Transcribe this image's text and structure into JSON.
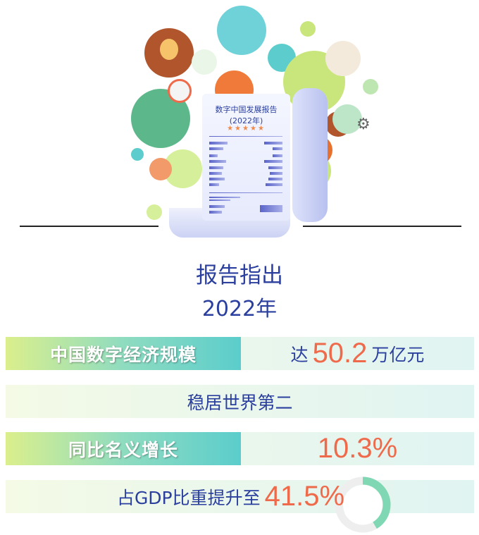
{
  "illustration": {
    "report_title": "数字中国发展报告",
    "report_year": "(2022年)",
    "stars": "★★★★★"
  },
  "heading": {
    "line1": "报告指出",
    "line2": "2022年"
  },
  "rows": [
    {
      "label": "中国数字经济规模",
      "prefix": "达",
      "value": "50.2",
      "suffix": "万亿元"
    },
    {
      "text": "稳居世界第二"
    },
    {
      "label": "同比名义增长",
      "value": "10.3%"
    },
    {
      "prefix": "占GDP比重提升至",
      "value": "41.5%",
      "gauge_percent": 41.5
    }
  ],
  "colors": {
    "accent": "#ef6a4a",
    "text": "#2b3f9e",
    "teal": "#5ccdcc",
    "lime": "#dbef8c"
  }
}
